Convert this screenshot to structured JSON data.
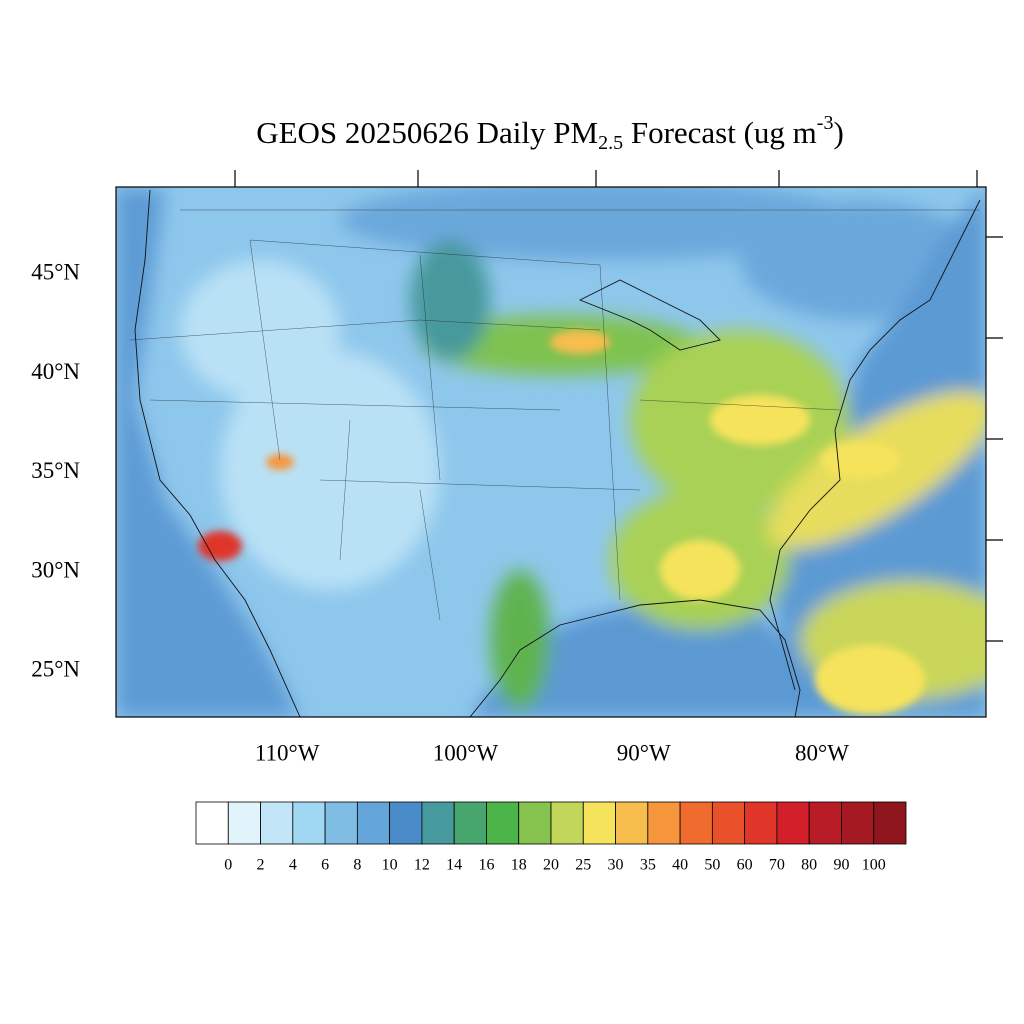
{
  "title": {
    "prefix": "GEOS 20250626 Daily PM",
    "subscript": "2.5",
    "middle": " Forecast (ug m",
    "superscript": "-3",
    "suffix": ")"
  },
  "map": {
    "xlim": [
      -119.6,
      -70.8
    ],
    "ylim": [
      22.7,
      49.4
    ],
    "xticks": [
      {
        "value": -110,
        "label": "110°W"
      },
      {
        "value": -100,
        "label": "100°W"
      },
      {
        "value": -90,
        "label": "90°W"
      },
      {
        "value": -80,
        "label": "80°W"
      }
    ],
    "yticks": [
      {
        "value": 25,
        "label": "25°N"
      },
      {
        "value": 30,
        "label": "30°N"
      },
      {
        "value": 35,
        "label": "35°N"
      },
      {
        "value": 40,
        "label": "40°N"
      },
      {
        "value": 45,
        "label": "45°N"
      }
    ]
  },
  "colorbar": {
    "levels": [
      0,
      2,
      4,
      6,
      8,
      10,
      12,
      14,
      16,
      18,
      20,
      25,
      30,
      35,
      40,
      50,
      60,
      70,
      80,
      90,
      100
    ],
    "colors": [
      "#ffffff",
      "#e1f3fb",
      "#c2e6f7",
      "#a0d8f3",
      "#80bde5",
      "#64a5da",
      "#4a8cc9",
      "#46999c",
      "#47a66e",
      "#4cb54a",
      "#86c34f",
      "#c2d65a",
      "#f6e35c",
      "#f7bd4d",
      "#f5963c",
      "#f06c2e",
      "#e9512b",
      "#e0362a",
      "#d21f2a",
      "#b81c26",
      "#a51a22",
      "#8f161c"
    ]
  }
}
